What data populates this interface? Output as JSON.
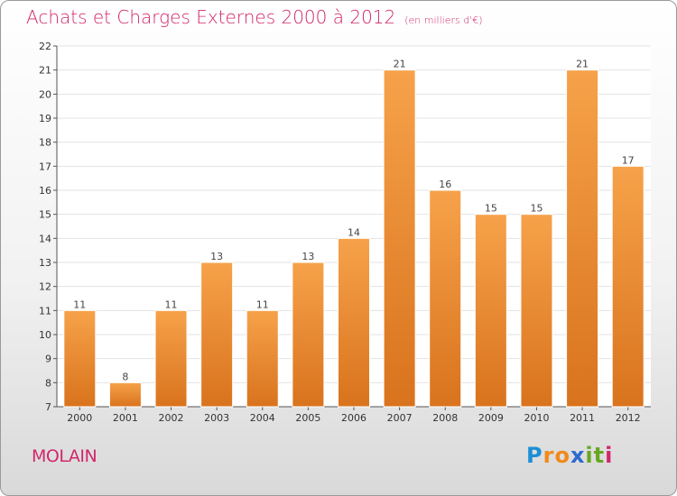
{
  "title": "Achats et Charges Externes 2000 à 2012",
  "subtitle": "(en milliers d'€)",
  "town": "MOLAIN",
  "logo": {
    "text": "Proxiti",
    "letters": [
      "P",
      "r",
      "o",
      "x",
      "i",
      "t",
      "i"
    ],
    "colors": [
      "#1c8ed6",
      "#f08a1c",
      "#f08a1c",
      "#2b6ad1",
      "#66a81f",
      "#66a81f",
      "#d1286b"
    ]
  },
  "colors": {
    "bar_light": "#f6a24a",
    "bar_dark": "#d9731d",
    "grid": "#e3e3e3"
  },
  "chart_data": {
    "type": "bar",
    "title": "Achats et Charges Externes 2000 à 2012",
    "subtitle": "(en milliers d'€)",
    "categories": [
      "2000",
      "2001",
      "2002",
      "2003",
      "2004",
      "2005",
      "2006",
      "2007",
      "2008",
      "2009",
      "2010",
      "2011",
      "2012"
    ],
    "values": [
      11,
      8,
      11,
      13,
      11,
      13,
      14,
      21,
      16,
      15,
      15,
      21,
      17
    ],
    "ylim": [
      7,
      22
    ],
    "yticks": [
      7,
      8,
      9,
      10,
      11,
      12,
      13,
      14,
      15,
      16,
      17,
      18,
      19,
      20,
      21,
      22
    ],
    "grid": true
  }
}
